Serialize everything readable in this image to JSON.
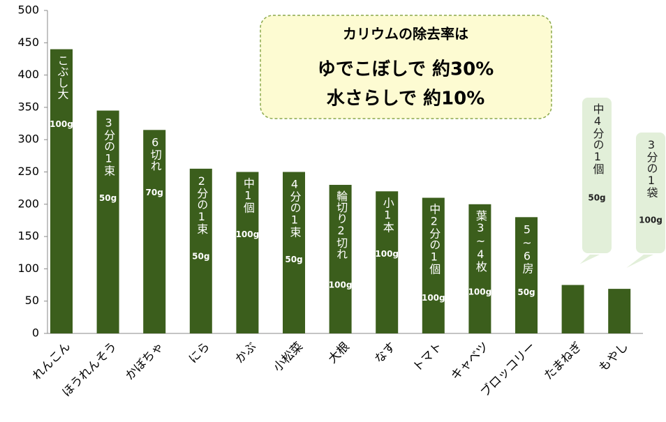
{
  "chart_data": {
    "type": "bar",
    "categories": [
      "れんこん",
      "ほうれんそう",
      "かぼちゃ",
      "にら",
      "かぶ",
      "小松菜",
      "大根",
      "なす",
      "トマト",
      "キャベツ",
      "ブロッコリー",
      "たまねぎ",
      "もやし"
    ],
    "values": [
      440,
      345,
      315,
      255,
      250,
      250,
      230,
      220,
      210,
      200,
      180,
      75,
      69
    ],
    "portions": [
      "こぶし大",
      "3分の1束",
      "6切れ",
      "2分の1束",
      "中1個",
      "4分の1束",
      "輪切り2切れ",
      "小1本",
      "中2分の1個",
      "葉3~4枚",
      "5~6房",
      "中4分の1個",
      "3分の1袋"
    ],
    "weights": [
      "100g",
      "50g",
      "70g",
      "50g",
      "100g",
      "50g",
      "100g",
      "100g",
      "100g",
      "100g",
      "50g",
      "50g",
      "100g"
    ],
    "color": "#3b5e1c",
    "ylim": [
      0,
      500
    ],
    "yticks": [
      0,
      50,
      100,
      150,
      200,
      250,
      300,
      350,
      400,
      450,
      500
    ],
    "annotation": {
      "title": "カリウムの除去率は",
      "lines": [
        "ゆでこぼしで 約30%",
        "水さらしで 約10%"
      ]
    }
  }
}
